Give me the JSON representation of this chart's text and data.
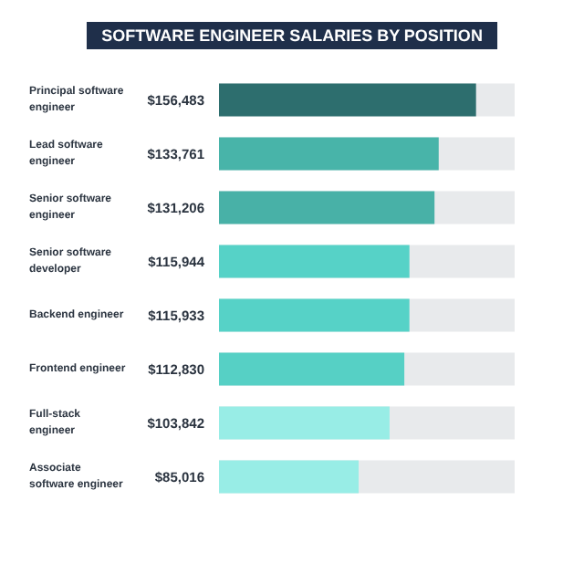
{
  "chart_data": {
    "type": "bar",
    "orientation": "horizontal",
    "title": "SOFTWARE ENGINEER SALARIES BY POSITION",
    "categories": [
      "Principal software engineer",
      "Lead software engineer",
      "Senior software engineer",
      "Senior software developer",
      "Backend engineer",
      "Frontend engineer",
      "Full-stack engineer",
      "Associate software engineer"
    ],
    "values": [
      156483,
      133761,
      131206,
      115944,
      115933,
      112830,
      103842,
      85016
    ],
    "value_labels": [
      "$156,483",
      "$133,761",
      "$131,206",
      "$115,944",
      "$115,933",
      "$112,830",
      "$103,842",
      "$85,016"
    ],
    "colors": [
      "#2d6e6e",
      "#48b4a9",
      "#48b1a7",
      "#56d2c7",
      "#56d2c7",
      "#56d0c5",
      "#98ede6",
      "#98ede6"
    ]
  }
}
